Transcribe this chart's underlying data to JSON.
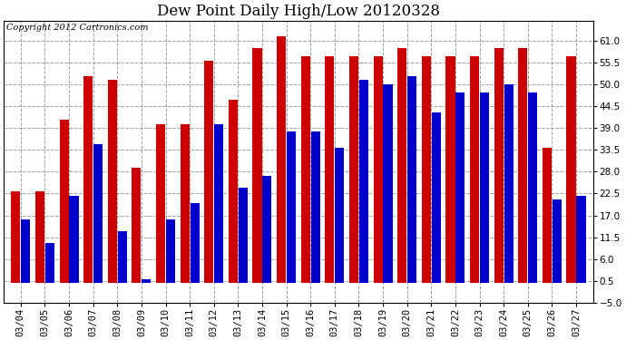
{
  "title": "Dew Point Daily High/Low 20120328",
  "copyright": "Copyright 2012 Cartronics.com",
  "dates": [
    "03/04",
    "03/05",
    "03/06",
    "03/07",
    "03/08",
    "03/09",
    "03/10",
    "03/11",
    "03/12",
    "03/13",
    "03/14",
    "03/15",
    "03/16",
    "03/17",
    "03/18",
    "03/19",
    "03/20",
    "03/21",
    "03/22",
    "03/23",
    "03/24",
    "03/25",
    "03/26",
    "03/27"
  ],
  "highs": [
    23,
    23,
    41,
    52,
    51,
    29,
    40,
    40,
    56,
    46,
    59,
    62,
    57,
    57,
    57,
    57,
    59,
    57,
    57,
    57,
    59,
    59,
    34,
    57
  ],
  "lows": [
    16,
    10,
    22,
    35,
    13,
    1,
    16,
    20,
    40,
    24,
    27,
    38,
    38,
    34,
    51,
    50,
    52,
    43,
    48,
    48,
    50,
    48,
    21,
    22
  ],
  "ylim": [
    -5,
    66
  ],
  "yticks": [
    -5.0,
    0.5,
    6.0,
    11.5,
    17.0,
    22.5,
    28.0,
    33.5,
    39.0,
    44.5,
    50.0,
    55.5,
    61.0
  ],
  "bar_color_high": "#cc0000",
  "bar_color_low": "#0000cc",
  "background_color": "#ffffff",
  "plot_background": "#ffffff",
  "grid_color": "#888888",
  "title_fontsize": 12,
  "copyright_fontsize": 7,
  "tick_fontsize": 7.5
}
